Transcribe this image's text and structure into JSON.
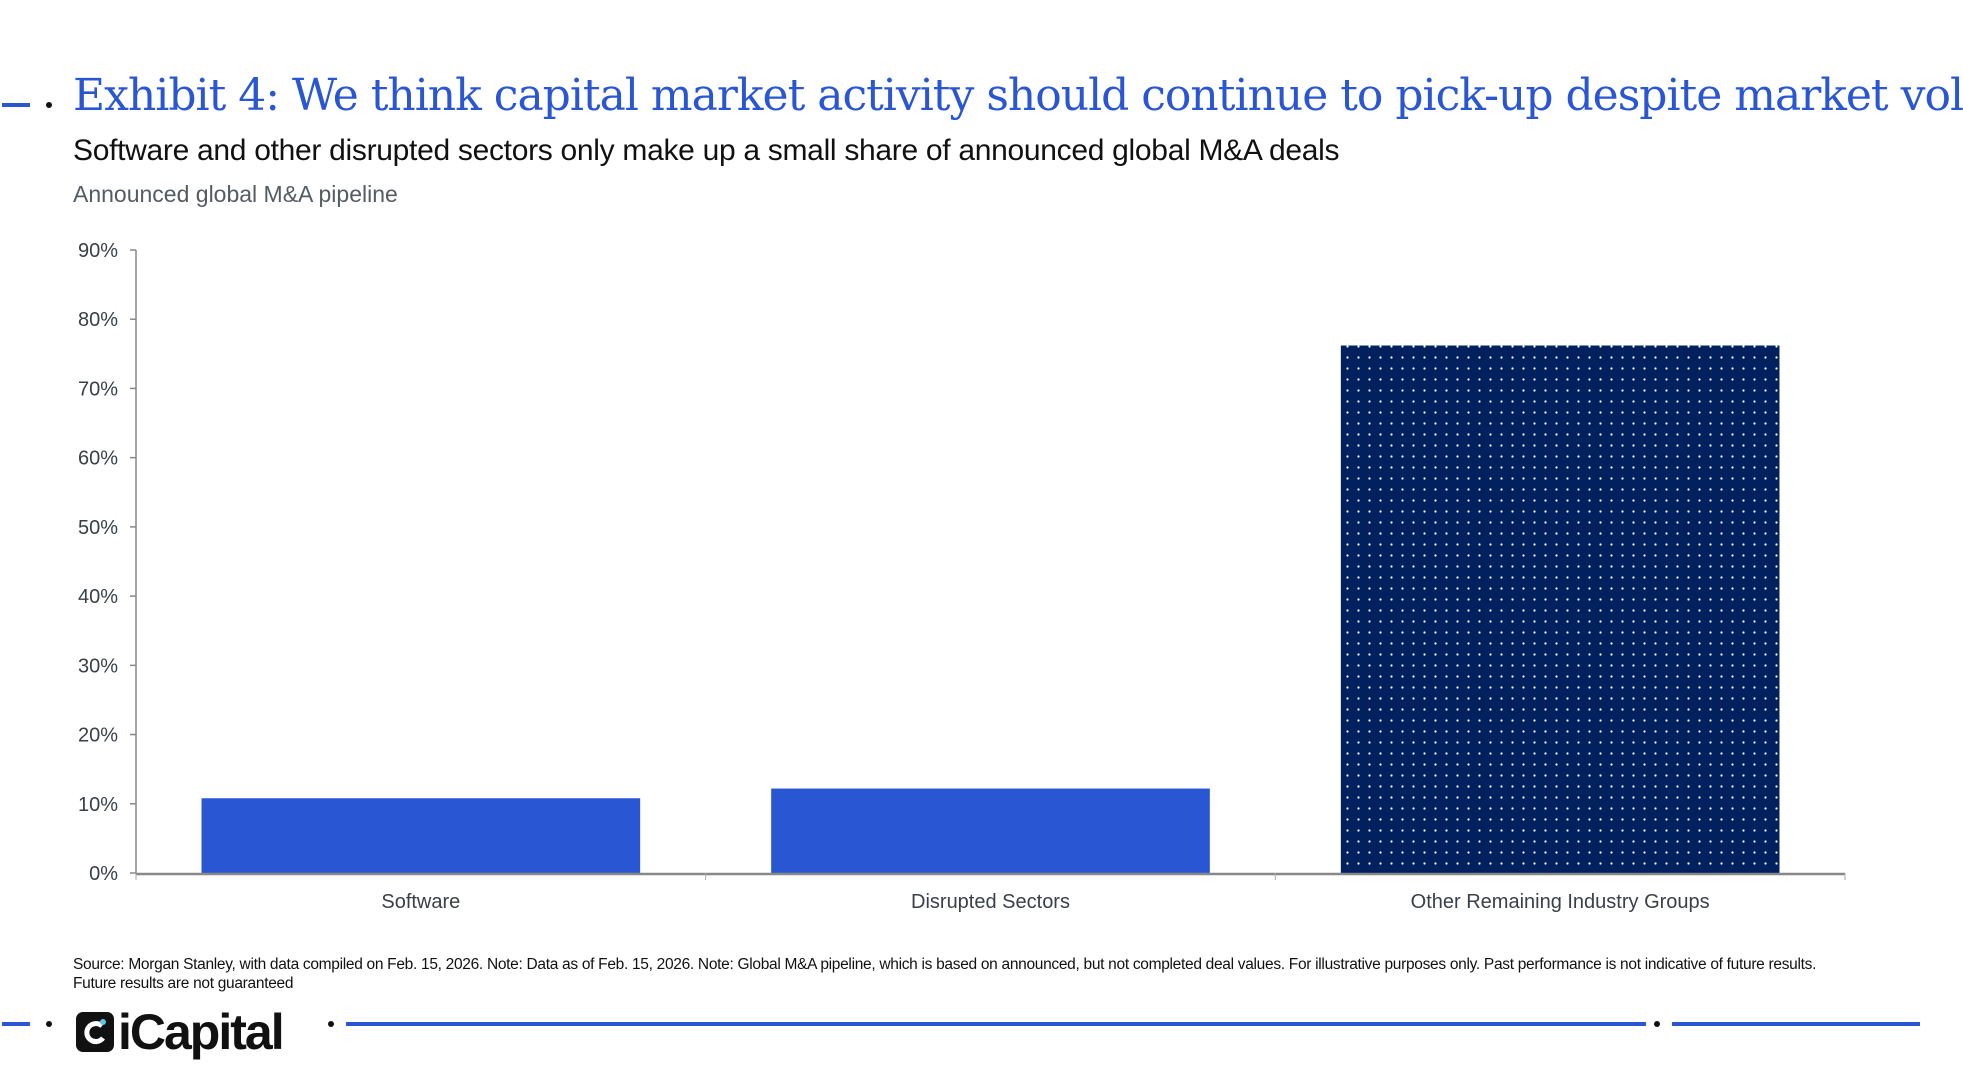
{
  "header": {
    "title": "Exhibit 4: We think capital market activity should continue to pick-up despite market vol",
    "subtitle": "Software and other disrupted sectors only make up a small share of announced global M&A deals",
    "chart_label": "Announced global M&A pipeline"
  },
  "chart_data": {
    "type": "bar",
    "title": "Announced global M&A pipeline",
    "categories": [
      "Software",
      "Disrupted Sectors",
      "Other Remaining Industry Groups"
    ],
    "values": [
      10.8,
      12.2,
      76.2
    ],
    "unit": "%",
    "ylim": [
      0,
      90
    ],
    "yticks": [
      0,
      10,
      20,
      30,
      40,
      50,
      60,
      70,
      80,
      90
    ],
    "ytick_labels": [
      "0%",
      "10%",
      "20%",
      "30%",
      "40%",
      "50%",
      "60%",
      "70%",
      "80%",
      "90%"
    ],
    "grid": false,
    "legend": "none",
    "colors": [
      "#2957d3",
      "#2957d3",
      "#00215e"
    ],
    "patterns": [
      "solid",
      "solid",
      "dotted"
    ]
  },
  "footer": {
    "source": "Source: Morgan Stanley, with data compiled on Feb. 15, 2026. Note: Data as of Feb. 15, 2026. Note: Global M&A pipeline, which is based on announced, but not completed deal values. For illustrative purposes only. Past performance is not indicative of future results. Future results are not guaranteed",
    "logo_text": "iCapital",
    "accent_color": "#2a56d3"
  }
}
